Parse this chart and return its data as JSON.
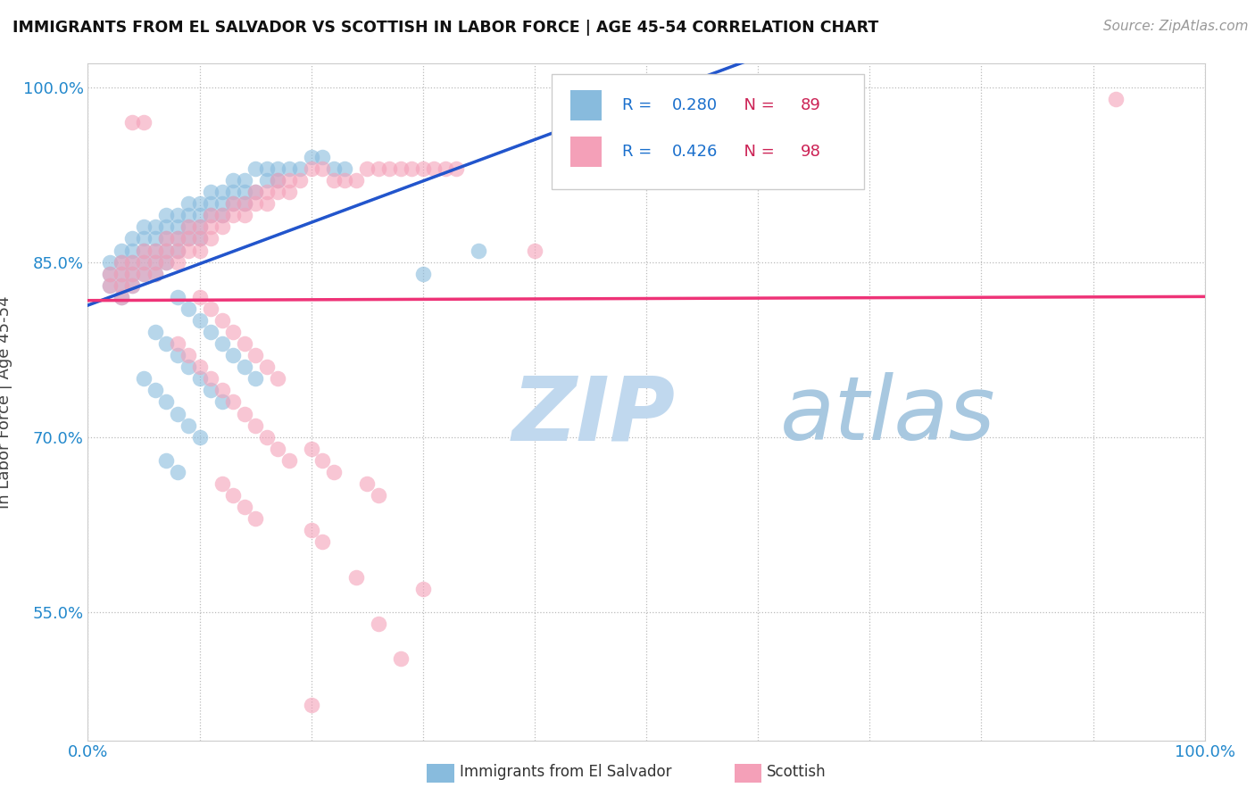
{
  "title": "IMMIGRANTS FROM EL SALVADOR VS SCOTTISH IN LABOR FORCE | AGE 45-54 CORRELATION CHART",
  "source": "Source: ZipAtlas.com",
  "ylabel": "In Labor Force | Age 45-54",
  "xlim": [
    0.0,
    1.0
  ],
  "ylim": [
    0.44,
    1.02
  ],
  "x_ticks": [
    0.0,
    0.1,
    0.2,
    0.3,
    0.4,
    0.5,
    0.6,
    0.7,
    0.8,
    0.9,
    1.0
  ],
  "x_tick_labels": [
    "0.0%",
    "",
    "",
    "",
    "",
    "",
    "",
    "",
    "",
    "",
    "100.0%"
  ],
  "y_tick_labels": [
    "55.0%",
    "70.0%",
    "85.0%",
    "100.0%"
  ],
  "y_ticks": [
    0.55,
    0.7,
    0.85,
    1.0
  ],
  "r_blue": 0.28,
  "n_blue": 89,
  "r_pink": 0.426,
  "n_pink": 98,
  "color_blue": "#88bbdd",
  "color_pink": "#f4a0b8",
  "trendline_blue": "#2255cc",
  "trendline_pink": "#ee3377",
  "trendline_dash_blue": "#88aadd",
  "legend_r_color": "#1a6fcc",
  "legend_n_color": "#cc2255",
  "watermark_zip": "ZIP",
  "watermark_atlas": "atlas",
  "watermark_color_zip": "#c8dff0",
  "watermark_color_atlas": "#a0c8e8",
  "blue_points": [
    [
      0.02,
      0.83
    ],
    [
      0.02,
      0.84
    ],
    [
      0.02,
      0.85
    ],
    [
      0.03,
      0.83
    ],
    [
      0.03,
      0.84
    ],
    [
      0.03,
      0.85
    ],
    [
      0.03,
      0.86
    ],
    [
      0.03,
      0.82
    ],
    [
      0.04,
      0.84
    ],
    [
      0.04,
      0.85
    ],
    [
      0.04,
      0.86
    ],
    [
      0.04,
      0.87
    ],
    [
      0.04,
      0.83
    ],
    [
      0.05,
      0.85
    ],
    [
      0.05,
      0.86
    ],
    [
      0.05,
      0.87
    ],
    [
      0.05,
      0.88
    ],
    [
      0.05,
      0.84
    ],
    [
      0.06,
      0.86
    ],
    [
      0.06,
      0.87
    ],
    [
      0.06,
      0.88
    ],
    [
      0.06,
      0.85
    ],
    [
      0.06,
      0.84
    ],
    [
      0.07,
      0.87
    ],
    [
      0.07,
      0.88
    ],
    [
      0.07,
      0.89
    ],
    [
      0.07,
      0.86
    ],
    [
      0.07,
      0.85
    ],
    [
      0.08,
      0.88
    ],
    [
      0.08,
      0.89
    ],
    [
      0.08,
      0.87
    ],
    [
      0.08,
      0.86
    ],
    [
      0.09,
      0.89
    ],
    [
      0.09,
      0.9
    ],
    [
      0.09,
      0.88
    ],
    [
      0.09,
      0.87
    ],
    [
      0.1,
      0.9
    ],
    [
      0.1,
      0.89
    ],
    [
      0.1,
      0.88
    ],
    [
      0.1,
      0.87
    ],
    [
      0.11,
      0.91
    ],
    [
      0.11,
      0.9
    ],
    [
      0.11,
      0.89
    ],
    [
      0.12,
      0.91
    ],
    [
      0.12,
      0.9
    ],
    [
      0.12,
      0.89
    ],
    [
      0.13,
      0.92
    ],
    [
      0.13,
      0.91
    ],
    [
      0.13,
      0.9
    ],
    [
      0.14,
      0.92
    ],
    [
      0.14,
      0.91
    ],
    [
      0.14,
      0.9
    ],
    [
      0.15,
      0.93
    ],
    [
      0.15,
      0.91
    ],
    [
      0.16,
      0.93
    ],
    [
      0.16,
      0.92
    ],
    [
      0.17,
      0.93
    ],
    [
      0.17,
      0.92
    ],
    [
      0.18,
      0.93
    ],
    [
      0.19,
      0.93
    ],
    [
      0.2,
      0.94
    ],
    [
      0.21,
      0.94
    ],
    [
      0.22,
      0.93
    ],
    [
      0.23,
      0.93
    ],
    [
      0.08,
      0.82
    ],
    [
      0.09,
      0.81
    ],
    [
      0.1,
      0.8
    ],
    [
      0.11,
      0.79
    ],
    [
      0.12,
      0.78
    ],
    [
      0.13,
      0.77
    ],
    [
      0.14,
      0.76
    ],
    [
      0.15,
      0.75
    ],
    [
      0.06,
      0.79
    ],
    [
      0.07,
      0.78
    ],
    [
      0.08,
      0.77
    ],
    [
      0.09,
      0.76
    ],
    [
      0.1,
      0.75
    ],
    [
      0.11,
      0.74
    ],
    [
      0.12,
      0.73
    ],
    [
      0.05,
      0.75
    ],
    [
      0.06,
      0.74
    ],
    [
      0.07,
      0.73
    ],
    [
      0.08,
      0.72
    ],
    [
      0.09,
      0.71
    ],
    [
      0.1,
      0.7
    ],
    [
      0.07,
      0.68
    ],
    [
      0.08,
      0.67
    ],
    [
      0.3,
      0.84
    ],
    [
      0.35,
      0.86
    ]
  ],
  "pink_points": [
    [
      0.02,
      0.84
    ],
    [
      0.02,
      0.83
    ],
    [
      0.03,
      0.85
    ],
    [
      0.03,
      0.84
    ],
    [
      0.03,
      0.83
    ],
    [
      0.03,
      0.82
    ],
    [
      0.04,
      0.85
    ],
    [
      0.04,
      0.84
    ],
    [
      0.04,
      0.83
    ],
    [
      0.05,
      0.86
    ],
    [
      0.05,
      0.85
    ],
    [
      0.05,
      0.84
    ],
    [
      0.06,
      0.86
    ],
    [
      0.06,
      0.85
    ],
    [
      0.06,
      0.84
    ],
    [
      0.07,
      0.87
    ],
    [
      0.07,
      0.86
    ],
    [
      0.07,
      0.85
    ],
    [
      0.08,
      0.87
    ],
    [
      0.08,
      0.86
    ],
    [
      0.08,
      0.85
    ],
    [
      0.09,
      0.88
    ],
    [
      0.09,
      0.87
    ],
    [
      0.09,
      0.86
    ],
    [
      0.1,
      0.88
    ],
    [
      0.1,
      0.87
    ],
    [
      0.1,
      0.86
    ],
    [
      0.11,
      0.89
    ],
    [
      0.11,
      0.88
    ],
    [
      0.11,
      0.87
    ],
    [
      0.12,
      0.89
    ],
    [
      0.12,
      0.88
    ],
    [
      0.13,
      0.9
    ],
    [
      0.13,
      0.89
    ],
    [
      0.14,
      0.9
    ],
    [
      0.14,
      0.89
    ],
    [
      0.15,
      0.91
    ],
    [
      0.15,
      0.9
    ],
    [
      0.16,
      0.91
    ],
    [
      0.16,
      0.9
    ],
    [
      0.17,
      0.92
    ],
    [
      0.17,
      0.91
    ],
    [
      0.18,
      0.92
    ],
    [
      0.18,
      0.91
    ],
    [
      0.19,
      0.92
    ],
    [
      0.2,
      0.93
    ],
    [
      0.21,
      0.93
    ],
    [
      0.22,
      0.92
    ],
    [
      0.23,
      0.92
    ],
    [
      0.24,
      0.92
    ],
    [
      0.25,
      0.93
    ],
    [
      0.26,
      0.93
    ],
    [
      0.27,
      0.93
    ],
    [
      0.28,
      0.93
    ],
    [
      0.29,
      0.93
    ],
    [
      0.3,
      0.93
    ],
    [
      0.31,
      0.93
    ],
    [
      0.32,
      0.93
    ],
    [
      0.33,
      0.93
    ],
    [
      0.1,
      0.82
    ],
    [
      0.11,
      0.81
    ],
    [
      0.12,
      0.8
    ],
    [
      0.13,
      0.79
    ],
    [
      0.14,
      0.78
    ],
    [
      0.15,
      0.77
    ],
    [
      0.16,
      0.76
    ],
    [
      0.17,
      0.75
    ],
    [
      0.08,
      0.78
    ],
    [
      0.09,
      0.77
    ],
    [
      0.1,
      0.76
    ],
    [
      0.11,
      0.75
    ],
    [
      0.12,
      0.74
    ],
    [
      0.13,
      0.73
    ],
    [
      0.14,
      0.72
    ],
    [
      0.15,
      0.71
    ],
    [
      0.16,
      0.7
    ],
    [
      0.17,
      0.69
    ],
    [
      0.18,
      0.68
    ],
    [
      0.2,
      0.69
    ],
    [
      0.21,
      0.68
    ],
    [
      0.22,
      0.67
    ],
    [
      0.25,
      0.66
    ],
    [
      0.26,
      0.65
    ],
    [
      0.12,
      0.66
    ],
    [
      0.13,
      0.65
    ],
    [
      0.14,
      0.64
    ],
    [
      0.15,
      0.63
    ],
    [
      0.2,
      0.62
    ],
    [
      0.21,
      0.61
    ],
    [
      0.24,
      0.58
    ],
    [
      0.3,
      0.57
    ],
    [
      0.26,
      0.54
    ],
    [
      0.28,
      0.51
    ],
    [
      0.2,
      0.47
    ],
    [
      0.04,
      0.97
    ],
    [
      0.05,
      0.97
    ],
    [
      0.92,
      0.99
    ],
    [
      0.4,
      0.86
    ]
  ]
}
